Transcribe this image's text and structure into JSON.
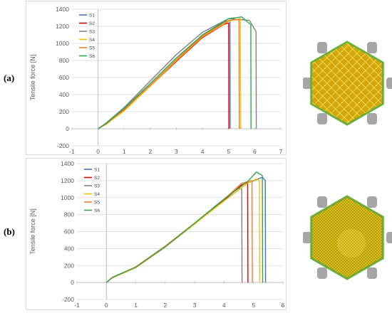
{
  "panels": [
    {
      "label": "(a)"
    },
    {
      "label": "(b)"
    }
  ],
  "colors": {
    "S1": "#4472C4",
    "S2": "#E00000",
    "S3": "#808080",
    "S4": "#FFC000",
    "S5": "#ED7D31",
    "S6": "#2EA84F",
    "print_fill": "#D4A80C",
    "print_fill_b": "#E2C81A",
    "print_line": "#F2D64A",
    "print_border": "#6BAE3A",
    "print_dark": "#7A6208",
    "clamp": "#A6A6A6"
  },
  "chart_data": [
    {
      "type": "line",
      "panel": "(a)",
      "xlabel": "Displacement [mm]",
      "ylabel": "Tensile force [N]",
      "xlim": [
        -1,
        7
      ],
      "ylim": [
        -200,
        1400
      ],
      "xticks": [
        -1,
        0,
        1,
        2,
        3,
        4,
        5,
        6,
        7
      ],
      "yticks": [
        -200,
        0,
        200,
        400,
        600,
        800,
        1000,
        1200,
        1400
      ],
      "grid": "horizontal",
      "legend": "top-left",
      "series": [
        {
          "name": "S1",
          "x": [
            0,
            0.3,
            1,
            2,
            3,
            4,
            4.8,
            5.05,
            5.06
          ],
          "y": [
            0,
            60,
            230,
            510,
            800,
            1080,
            1250,
            1270,
            0
          ]
        },
        {
          "name": "S2",
          "x": [
            0,
            0.3,
            1,
            2,
            3,
            4,
            4.8,
            5.0,
            5.01
          ],
          "y": [
            0,
            55,
            220,
            500,
            790,
            1070,
            1220,
            1240,
            0
          ]
        },
        {
          "name": "S3",
          "x": [
            0,
            0.3,
            1,
            2,
            3,
            4,
            5,
            5.8,
            6.05,
            6.06
          ],
          "y": [
            0,
            65,
            250,
            560,
            870,
            1130,
            1290,
            1270,
            1140,
            0
          ]
        },
        {
          "name": "S4",
          "x": [
            0,
            0.3,
            1,
            2,
            3,
            4,
            5,
            5.45,
            5.46
          ],
          "y": [
            0,
            50,
            210,
            500,
            800,
            1080,
            1260,
            1290,
            0
          ]
        },
        {
          "name": "S5",
          "x": [
            0,
            0.3,
            1,
            2,
            3,
            4,
            5,
            5.4,
            5.41
          ],
          "y": [
            0,
            55,
            230,
            510,
            810,
            1090,
            1270,
            1280,
            0
          ]
        },
        {
          "name": "S6",
          "x": [
            0,
            0.3,
            1,
            2,
            3,
            4,
            5,
            5.5,
            5.85,
            5.86
          ],
          "y": [
            0,
            60,
            240,
            530,
            830,
            1100,
            1290,
            1310,
            1220,
            0
          ]
        }
      ]
    },
    {
      "type": "line",
      "panel": "(b)",
      "xlabel": "Displacement [mm]",
      "ylabel": "Tensile force [N]",
      "xlim": [
        -1,
        6
      ],
      "ylim": [
        -200,
        1400
      ],
      "xticks": [
        -1,
        0,
        1,
        2,
        3,
        4,
        5,
        6
      ],
      "yticks": [
        -200,
        0,
        200,
        400,
        600,
        800,
        1000,
        1200,
        1400
      ],
      "grid": "horizontal",
      "legend": "top-left",
      "series": [
        {
          "name": "S1",
          "x": [
            0,
            0.2,
            1,
            2,
            3,
            4,
            4.8,
            5.3,
            5.4,
            5.41
          ],
          "y": [
            0,
            60,
            180,
            420,
            690,
            960,
            1170,
            1240,
            1200,
            0
          ]
        },
        {
          "name": "S2",
          "x": [
            0,
            0.2,
            1,
            2,
            3,
            4,
            4.6,
            4.8,
            4.81
          ],
          "y": [
            0,
            55,
            175,
            420,
            690,
            970,
            1150,
            1180,
            0
          ]
        },
        {
          "name": "S3",
          "x": [
            0,
            0.2,
            1,
            2,
            3,
            3.7,
            4.2,
            4.5,
            4.6,
            4.61
          ],
          "y": [
            0,
            60,
            180,
            420,
            690,
            900,
            1040,
            1110,
            1100,
            0
          ]
        },
        {
          "name": "S4",
          "x": [
            0,
            0.2,
            1,
            2,
            3,
            4,
            4.8,
            5.1,
            5.2,
            5.21
          ],
          "y": [
            0,
            55,
            175,
            420,
            690,
            960,
            1170,
            1220,
            1200,
            0
          ]
        },
        {
          "name": "S5",
          "x": [
            0,
            0.2,
            1,
            2,
            3,
            4,
            4.6,
            4.95,
            4.96
          ],
          "y": [
            0,
            60,
            185,
            430,
            700,
            980,
            1170,
            1200,
            0
          ]
        },
        {
          "name": "S6",
          "x": [
            0,
            0.2,
            1,
            2,
            3,
            4,
            4.8,
            5.1,
            5.3,
            5.31
          ],
          "y": [
            0,
            60,
            180,
            420,
            700,
            980,
            1190,
            1300,
            1260,
            0
          ]
        }
      ]
    }
  ]
}
